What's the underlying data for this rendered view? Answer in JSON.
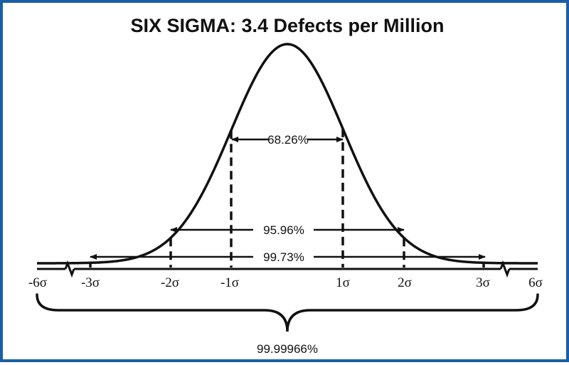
{
  "title": "SIX SIGMA: 3.4 Defects per Million",
  "colors": {
    "border": "#1a5ea8",
    "ink": "#111111",
    "background": "#ffffff"
  },
  "axis_labels": [
    "-6σ",
    "-3σ",
    "-2σ",
    "-1σ",
    "1σ",
    "2σ",
    "3σ",
    "6σ"
  ],
  "intervals": [
    {
      "range": "±1σ",
      "label": "68.26%"
    },
    {
      "range": "±2σ",
      "label": "95.96%"
    },
    {
      "range": "±3σ",
      "label": "99.73%"
    }
  ],
  "six_sigma_label": "99.99966%"
}
